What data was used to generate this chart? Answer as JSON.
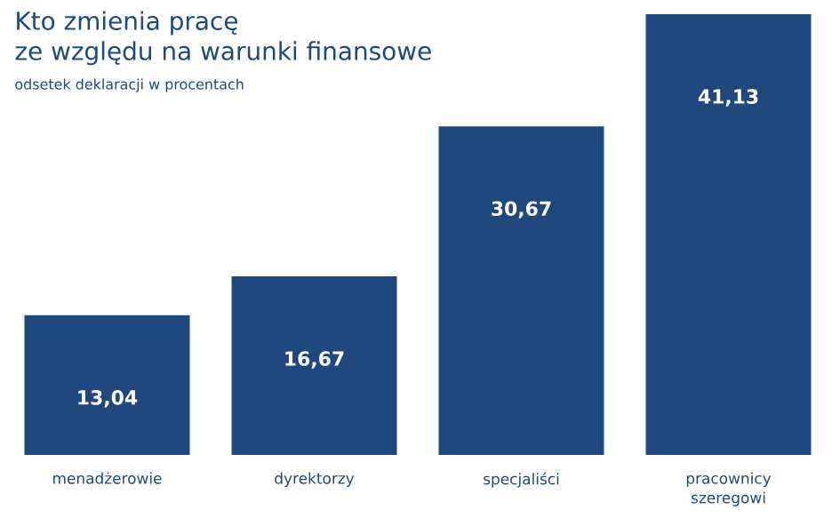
{
  "chart_data": {
    "type": "bar",
    "title": "Kto zmienia pracę\nze względu na warunki finansowe",
    "subtitle": "odsetek deklaracji w procentach",
    "categories": [
      "menadżerowie",
      "dyrektorzy",
      "specjaliści",
      "pracownicy szeregowi"
    ],
    "values": [
      13.04,
      16.67,
      30.67,
      41.13
    ],
    "value_labels": [
      "13,04",
      "16,67",
      "30,67",
      "41,13"
    ],
    "color": "#1f497d"
  }
}
